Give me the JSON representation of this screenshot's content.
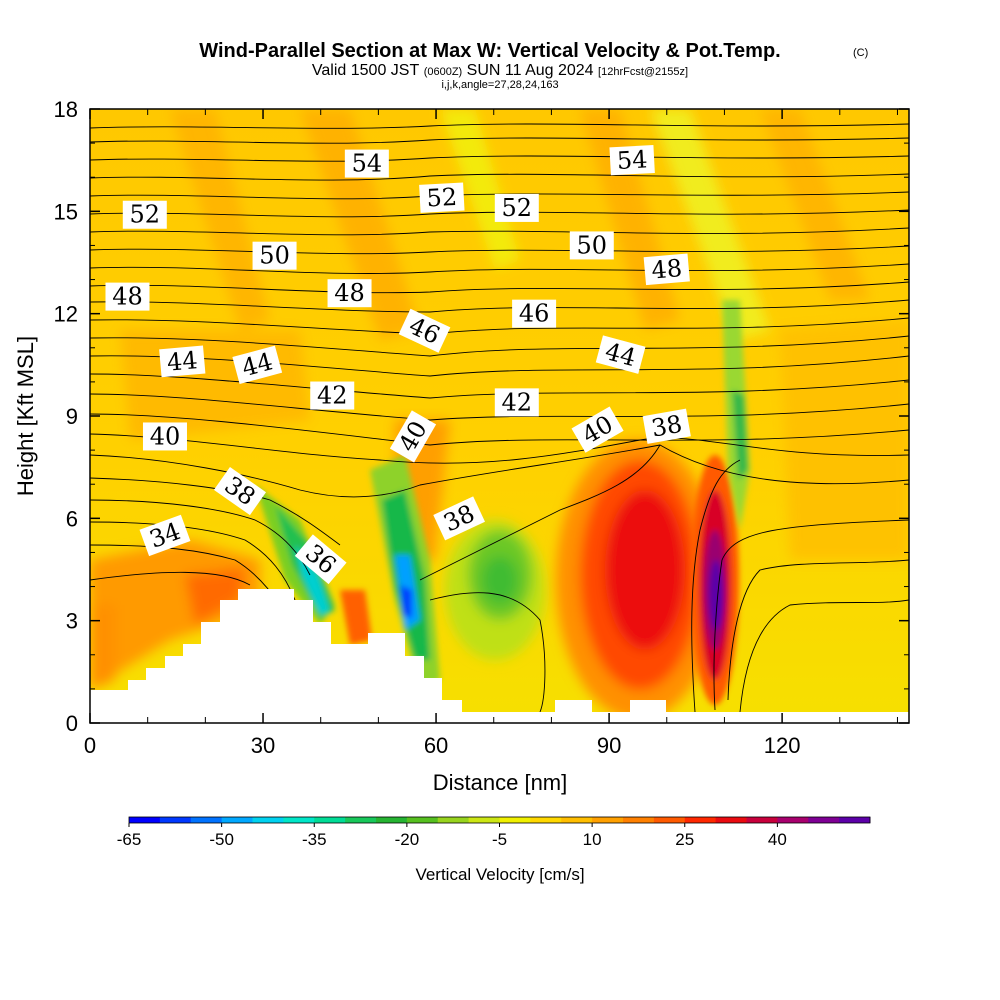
{
  "chart_data": {
    "type": "heatmap",
    "title": "Wind-Parallel Section at Max W: Vertical Velocity & Pot.Temp.",
    "copyright_mark": "(C)",
    "subtitle": {
      "valid": "Valid 1500 JST",
      "utc": "(0600Z)",
      "date": "SUN 11 Aug 2024",
      "forecast": "[12hrFcst@2155z]"
    },
    "index_line": "i,j,k,angle=27,28,24,163",
    "xlabel": "Distance [nm]",
    "ylabel": "Height [Kft MSL]",
    "xlim": [
      0,
      142
    ],
    "ylim": [
      0,
      18
    ],
    "x_ticks": [
      "0",
      "30",
      "60",
      "90",
      "120"
    ],
    "y_ticks": [
      "0",
      "3",
      "6",
      "9",
      "12",
      "15",
      "18"
    ],
    "x_tick_values": [
      0,
      30,
      60,
      90,
      120
    ],
    "y_tick_values": [
      0,
      3,
      6,
      9,
      12,
      15,
      18
    ],
    "colorbar": {
      "label": "Vertical Velocity [cm/s]",
      "tick_labels": [
        "-65",
        "-50",
        "-35",
        "-20",
        "-5",
        "10",
        "25",
        "40"
      ],
      "colors": [
        "#0000ff",
        "#0038ff",
        "#0072ff",
        "#00a8ff",
        "#00d2f0",
        "#00e6c8",
        "#00dc96",
        "#18c85a",
        "#26b432",
        "#56c020",
        "#98d41e",
        "#cce614",
        "#f0f000",
        "#ffd800",
        "#ffbe00",
        "#ffa000",
        "#ff8000",
        "#ff5a00",
        "#ff2800",
        "#ea0a10",
        "#c8003c",
        "#a8006e",
        "#7e0094",
        "#5c00a8"
      ]
    },
    "contour_labels": [
      {
        "text": "54",
        "x": 48,
        "y": 16.4,
        "rot": 0
      },
      {
        "text": "54",
        "x": 94,
        "y": 16.5,
        "rot": -3
      },
      {
        "text": "52",
        "x": 9.5,
        "y": 14.9,
        "rot": 0
      },
      {
        "text": "52",
        "x": 61,
        "y": 15.4,
        "rot": -3
      },
      {
        "text": "52",
        "x": 74,
        "y": 15.1,
        "rot": 0
      },
      {
        "text": "50",
        "x": 32,
        "y": 13.7,
        "rot": 0
      },
      {
        "text": "50",
        "x": 87,
        "y": 14.0,
        "rot": 0
      },
      {
        "text": "48",
        "x": 6.5,
        "y": 12.5,
        "rot": 0
      },
      {
        "text": "48",
        "x": 45,
        "y": 12.6,
        "rot": 0
      },
      {
        "text": "48",
        "x": 100,
        "y": 13.3,
        "rot": -5
      },
      {
        "text": "46",
        "x": 58,
        "y": 11.5,
        "rot": 25
      },
      {
        "text": "46",
        "x": 77,
        "y": 12.0,
        "rot": 0
      },
      {
        "text": "44",
        "x": 16,
        "y": 10.6,
        "rot": -5
      },
      {
        "text": "44",
        "x": 29,
        "y": 10.5,
        "rot": -15
      },
      {
        "text": "44",
        "x": 92,
        "y": 10.8,
        "rot": 15
      },
      {
        "text": "42",
        "x": 42,
        "y": 9.6,
        "rot": 0
      },
      {
        "text": "42",
        "x": 74,
        "y": 9.4,
        "rot": 0
      },
      {
        "text": "40",
        "x": 13,
        "y": 8.4,
        "rot": 0
      },
      {
        "text": "40",
        "x": 56,
        "y": 8.4,
        "rot": -60
      },
      {
        "text": "40",
        "x": 88,
        "y": 8.6,
        "rot": -30
      },
      {
        "text": "38",
        "x": 100,
        "y": 8.7,
        "rot": -10
      },
      {
        "text": "38",
        "x": 26,
        "y": 6.8,
        "rot": 35
      },
      {
        "text": "38",
        "x": 64,
        "y": 6.0,
        "rot": -25
      },
      {
        "text": "36",
        "x": 40,
        "y": 4.8,
        "rot": 40
      },
      {
        "text": "34",
        "x": 13,
        "y": 5.5,
        "rot": -20
      }
    ]
  }
}
